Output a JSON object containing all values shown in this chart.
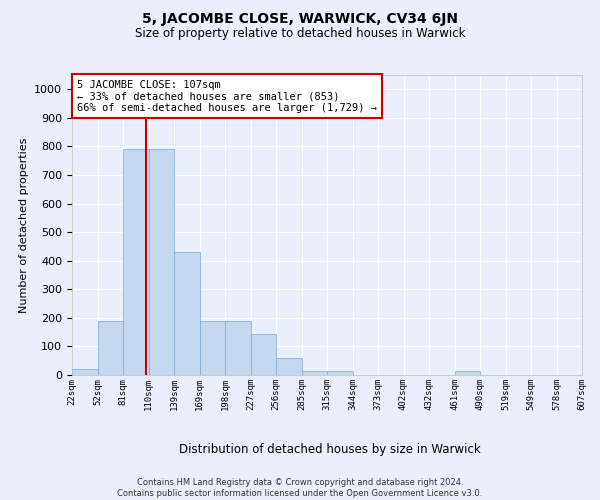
{
  "title": "5, JACOMBE CLOSE, WARWICK, CV34 6JN",
  "subtitle": "Size of property relative to detached houses in Warwick",
  "xlabel": "Distribution of detached houses by size in Warwick",
  "ylabel": "Number of detached properties",
  "bar_values": [
    20,
    190,
    790,
    790,
    430,
    190,
    190,
    145,
    60,
    15,
    15,
    0,
    0,
    0,
    0,
    15,
    0,
    0,
    0,
    0
  ],
  "bin_labels": [
    "22sqm",
    "52sqm",
    "81sqm",
    "110sqm",
    "139sqm",
    "169sqm",
    "198sqm",
    "227sqm",
    "256sqm",
    "285sqm",
    "315sqm",
    "344sqm",
    "373sqm",
    "402sqm",
    "432sqm",
    "461sqm",
    "490sqm",
    "519sqm",
    "549sqm",
    "578sqm",
    "607sqm"
  ],
  "bar_color": "#c5d8f0",
  "bar_edge_color": "#7aa8d4",
  "vline_color": "#cc0000",
  "annotation_text": "5 JACOMBE CLOSE: 107sqm\n← 33% of detached houses are smaller (853)\n66% of semi-detached houses are larger (1,729) →",
  "annotation_box_color": "#cc0000",
  "annotation_bg_color": "#ffffff",
  "ylim": [
    0,
    1050
  ],
  "yticks": [
    0,
    100,
    200,
    300,
    400,
    500,
    600,
    700,
    800,
    900,
    1000
  ],
  "footer_text": "Contains HM Land Registry data © Crown copyright and database right 2024.\nContains public sector information licensed under the Open Government Licence v3.0.",
  "bg_color": "#eaf0fb",
  "plot_bg_color": "#eaf0fb",
  "grid_color": "#ffffff"
}
